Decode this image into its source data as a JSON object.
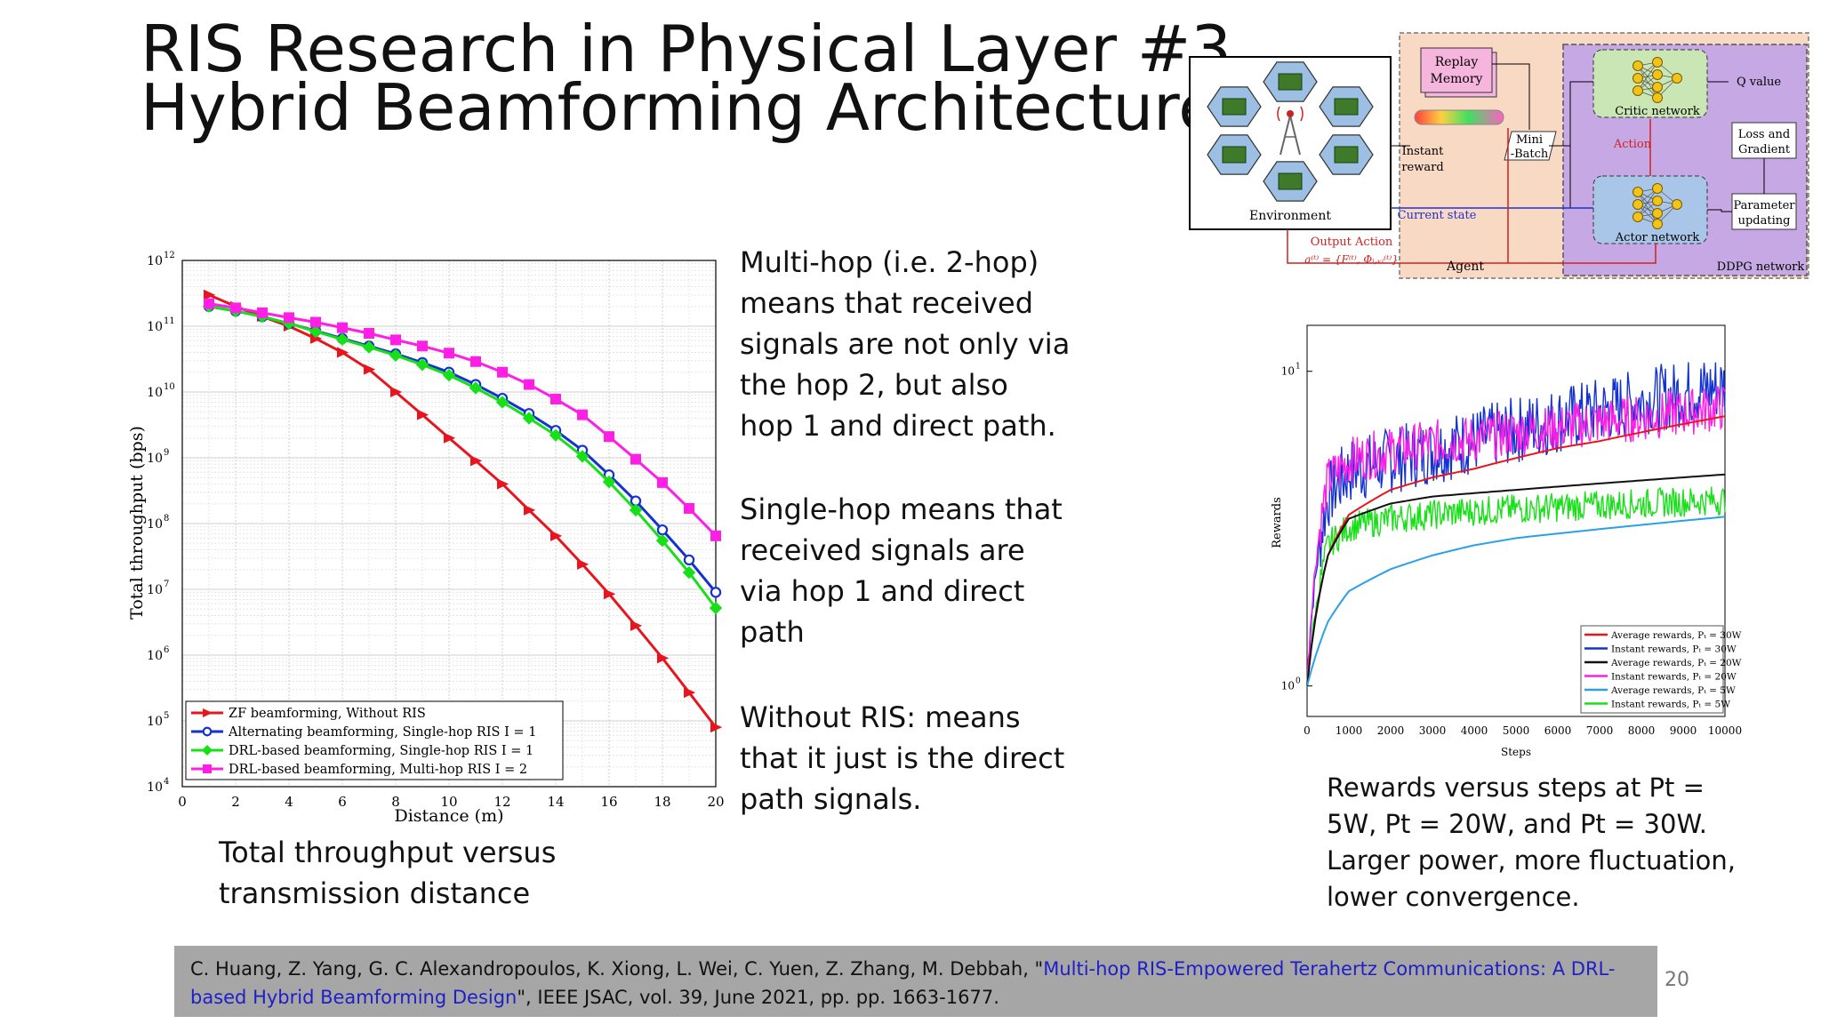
{
  "slide": {
    "title_line1": "RIS Research in Physical Layer #3",
    "title_line2": "Hybrid Beamforming Architecture",
    "paragraphs": {
      "multihop": [
        "Multi-hop (i.e. 2-hop)",
        "means that received",
        "signals are not only via",
        "the hop 2, but also",
        "hop 1 and direct path."
      ],
      "singlehop": [
        "Single-hop means that",
        "received signals are",
        "via hop 1 and direct",
        "path"
      ],
      "without": [
        "Without RIS: means",
        "that it just is the direct",
        "path signals."
      ]
    },
    "caption_left": [
      "Total throughput versus",
      "transmission distance"
    ],
    "caption_right": [
      "Rewards versus steps at Pt =",
      "5W, Pt = 20W, and Pt = 30W.",
      "Larger power, more fluctuation,",
      "lower convergence."
    ],
    "citation": {
      "before_link": "C. Huang, Z. Yang, G. C. Alexandropoulos, K. Xiong, L. Wei, C. Yuen, Z. Zhang, M. Debbah, \"",
      "link_line1": "Multi-hop RIS-Empowered Terahertz Communications: A DRL-",
      "link_line2": "based Hybrid Beamforming Design",
      "after_link": "\", IEEE JSAC, vol. 39, June 2021, pp. pp. 1663-1677."
    },
    "page_number": "20"
  },
  "diagram": {
    "environment": "Environment",
    "replay_memory_1": "Replay",
    "replay_memory_2": "Memory",
    "instant_reward_1": "Instant",
    "instant_reward_2": "reward",
    "mini_batch_1": "Mini",
    "mini_batch_2": "-Batch",
    "critic": "Critic network",
    "actor": "Actor network",
    "q_value": "Q value",
    "action": "Action",
    "loss_1": "Loss and",
    "loss_2": "Gradient",
    "param_1": "Parameter",
    "param_2": "updating",
    "current_state": "Current state",
    "output_action": "Output Action",
    "action_formula": "a⁽ᵗ⁾ = {F⁽ᵗ⁾, Φᵢ,ᵥᵢ⁽ᵗ⁾}",
    "agent": "Agent",
    "ddpg": "DDPG network",
    "colors": {
      "agent_bg": "#f8d9c4",
      "ddpg_bg": "#c6a8e4",
      "critic_bg": "#c9e6b4",
      "actor_bg": "#a9c6e8",
      "hex_fill": "#9dbfe3"
    }
  },
  "chart_data": [
    {
      "type": "line",
      "title": "",
      "xlabel": "Distance (m)",
      "ylabel": "Total throughput (bps)",
      "xlim": [
        0,
        20
      ],
      "ylim_log10": [
        4,
        12
      ],
      "yscale": "log",
      "grid": true,
      "legend_placement": "bottom-left",
      "x_ticks": [
        "0",
        "2",
        "4",
        "6",
        "8",
        "10",
        "12",
        "14",
        "16",
        "18",
        "20"
      ],
      "y_ticks": [
        "10",
        "10",
        "10",
        "10",
        "10",
        "10",
        "10",
        "10",
        "10"
      ],
      "y_tick_exponents": [
        "4",
        "5",
        "6",
        "7",
        "8",
        "9",
        "10",
        "11",
        "12"
      ],
      "x": [
        1,
        2,
        3,
        4,
        5,
        6,
        7,
        8,
        9,
        10,
        11,
        12,
        13,
        14,
        15,
        16,
        17,
        18,
        19,
        20
      ],
      "series": [
        {
          "name": "ZF beamforming, Without RIS",
          "color": "#e8141e",
          "marker": "triangle-right",
          "values": [
            300000000000.0,
            200000000000.0,
            140000000000.0,
            100000000000.0,
            65000000000.0,
            40000000000.0,
            22000000000.0,
            10000000000.0,
            4500000000.0,
            2000000000.0,
            900000000.0,
            400000000.0,
            160000000.0,
            65000000.0,
            24000000.0,
            8500000.0,
            2800000.0,
            900000.0,
            270000.0,
            80000.0
          ]
        },
        {
          "name": "Alternating beamforming, Single-hop RIS I = 1",
          "color": "#1432d2",
          "marker": "circle",
          "values": [
            200000000000.0,
            170000000000.0,
            140000000000.0,
            110000000000.0,
            85000000000.0,
            65000000000.0,
            50000000000.0,
            38000000000.0,
            28000000000.0,
            20000000000.0,
            13000000000.0,
            8000000000.0,
            4700000000.0,
            2600000000.0,
            1300000000.0,
            550000000.0,
            220000000.0,
            80000000.0,
            28000000.0,
            9000000.0
          ]
        },
        {
          "name": "DRL-based beamforming, Single-hop RIS I = 1",
          "color": "#18e018",
          "marker": "diamond",
          "values": [
            200000000000.0,
            170000000000.0,
            140000000000.0,
            110000000000.0,
            83000000000.0,
            63000000000.0,
            48000000000.0,
            36000000000.0,
            26000000000.0,
            18000000000.0,
            11500000000.0,
            7000000000.0,
            4000000000.0,
            2200000000.0,
            1050000000.0,
            430000000.0,
            160000000.0,
            55000000.0,
            18000000.0,
            5200000.0
          ]
        },
        {
          "name": "DRL-based beamforming, Multi-hop RIS I = 2",
          "color": "#ff1ee6",
          "marker": "square",
          "values": [
            220000000000.0,
            190000000000.0,
            160000000000.0,
            135000000000.0,
            115000000000.0,
            95000000000.0,
            78000000000.0,
            62000000000.0,
            50000000000.0,
            39000000000.0,
            29000000000.0,
            20000000000.0,
            13000000000.0,
            7800000000.0,
            4500000000.0,
            2100000000.0,
            950000000.0,
            420000000.0,
            170000000.0,
            65000000.0
          ]
        }
      ]
    },
    {
      "type": "line",
      "title": "",
      "xlabel": "Steps",
      "ylabel": "Rewards",
      "xlim": [
        0,
        10000
      ],
      "yscale": "log",
      "y_ticks": [
        "10",
        "10"
      ],
      "y_tick_exponents": [
        "1",
        "0"
      ],
      "x_ticks": [
        "0",
        "1000",
        "2000",
        "3000",
        "4000",
        "5000",
        "6000",
        "7000",
        "8000",
        "9000",
        "10000"
      ],
      "grid": false,
      "legend_placement": "bottom-right",
      "x": [
        0,
        500,
        1000,
        2000,
        3000,
        4000,
        5000,
        6000,
        7000,
        8000,
        9000,
        10000
      ],
      "series": [
        {
          "name": "Average rewards, Pₜ = 30W",
          "color": "#e8141e",
          "values": [
            1.0,
            2.6,
            3.5,
            4.2,
            4.6,
            4.9,
            5.3,
            5.7,
            6.0,
            6.4,
            6.8,
            7.2
          ]
        },
        {
          "name": "Instant rewards, Pₜ = 30W",
          "color": "#1432d2",
          "values": [
            1.0,
            4.0,
            4.8,
            5.2,
            5.6,
            6.0,
            6.5,
            7.0,
            7.5,
            8.0,
            8.5,
            9.0
          ]
        },
        {
          "name": "Average rewards, Pₜ = 20W",
          "color": "#111111",
          "values": [
            1.0,
            2.6,
            3.4,
            3.8,
            4.0,
            4.1,
            4.2,
            4.3,
            4.4,
            4.5,
            4.6,
            4.7
          ]
        },
        {
          "name": "Instant rewards, Pₜ = 20W",
          "color": "#ff1ee6",
          "values": [
            1.0,
            4.5,
            5.2,
            5.6,
            5.9,
            6.1,
            6.4,
            6.6,
            6.9,
            7.1,
            7.4,
            7.7
          ]
        },
        {
          "name": "Average rewards, Pₜ = 5W",
          "color": "#2aa0ea",
          "values": [
            1.0,
            1.6,
            2.0,
            2.35,
            2.6,
            2.8,
            2.95,
            3.05,
            3.15,
            3.25,
            3.35,
            3.45
          ]
        },
        {
          "name": "Instant rewards, Pₜ = 5W",
          "color": "#18e018",
          "values": [
            1.0,
            2.8,
            3.2,
            3.4,
            3.5,
            3.6,
            3.65,
            3.7,
            3.75,
            3.8,
            3.85,
            3.9
          ]
        }
      ]
    }
  ]
}
